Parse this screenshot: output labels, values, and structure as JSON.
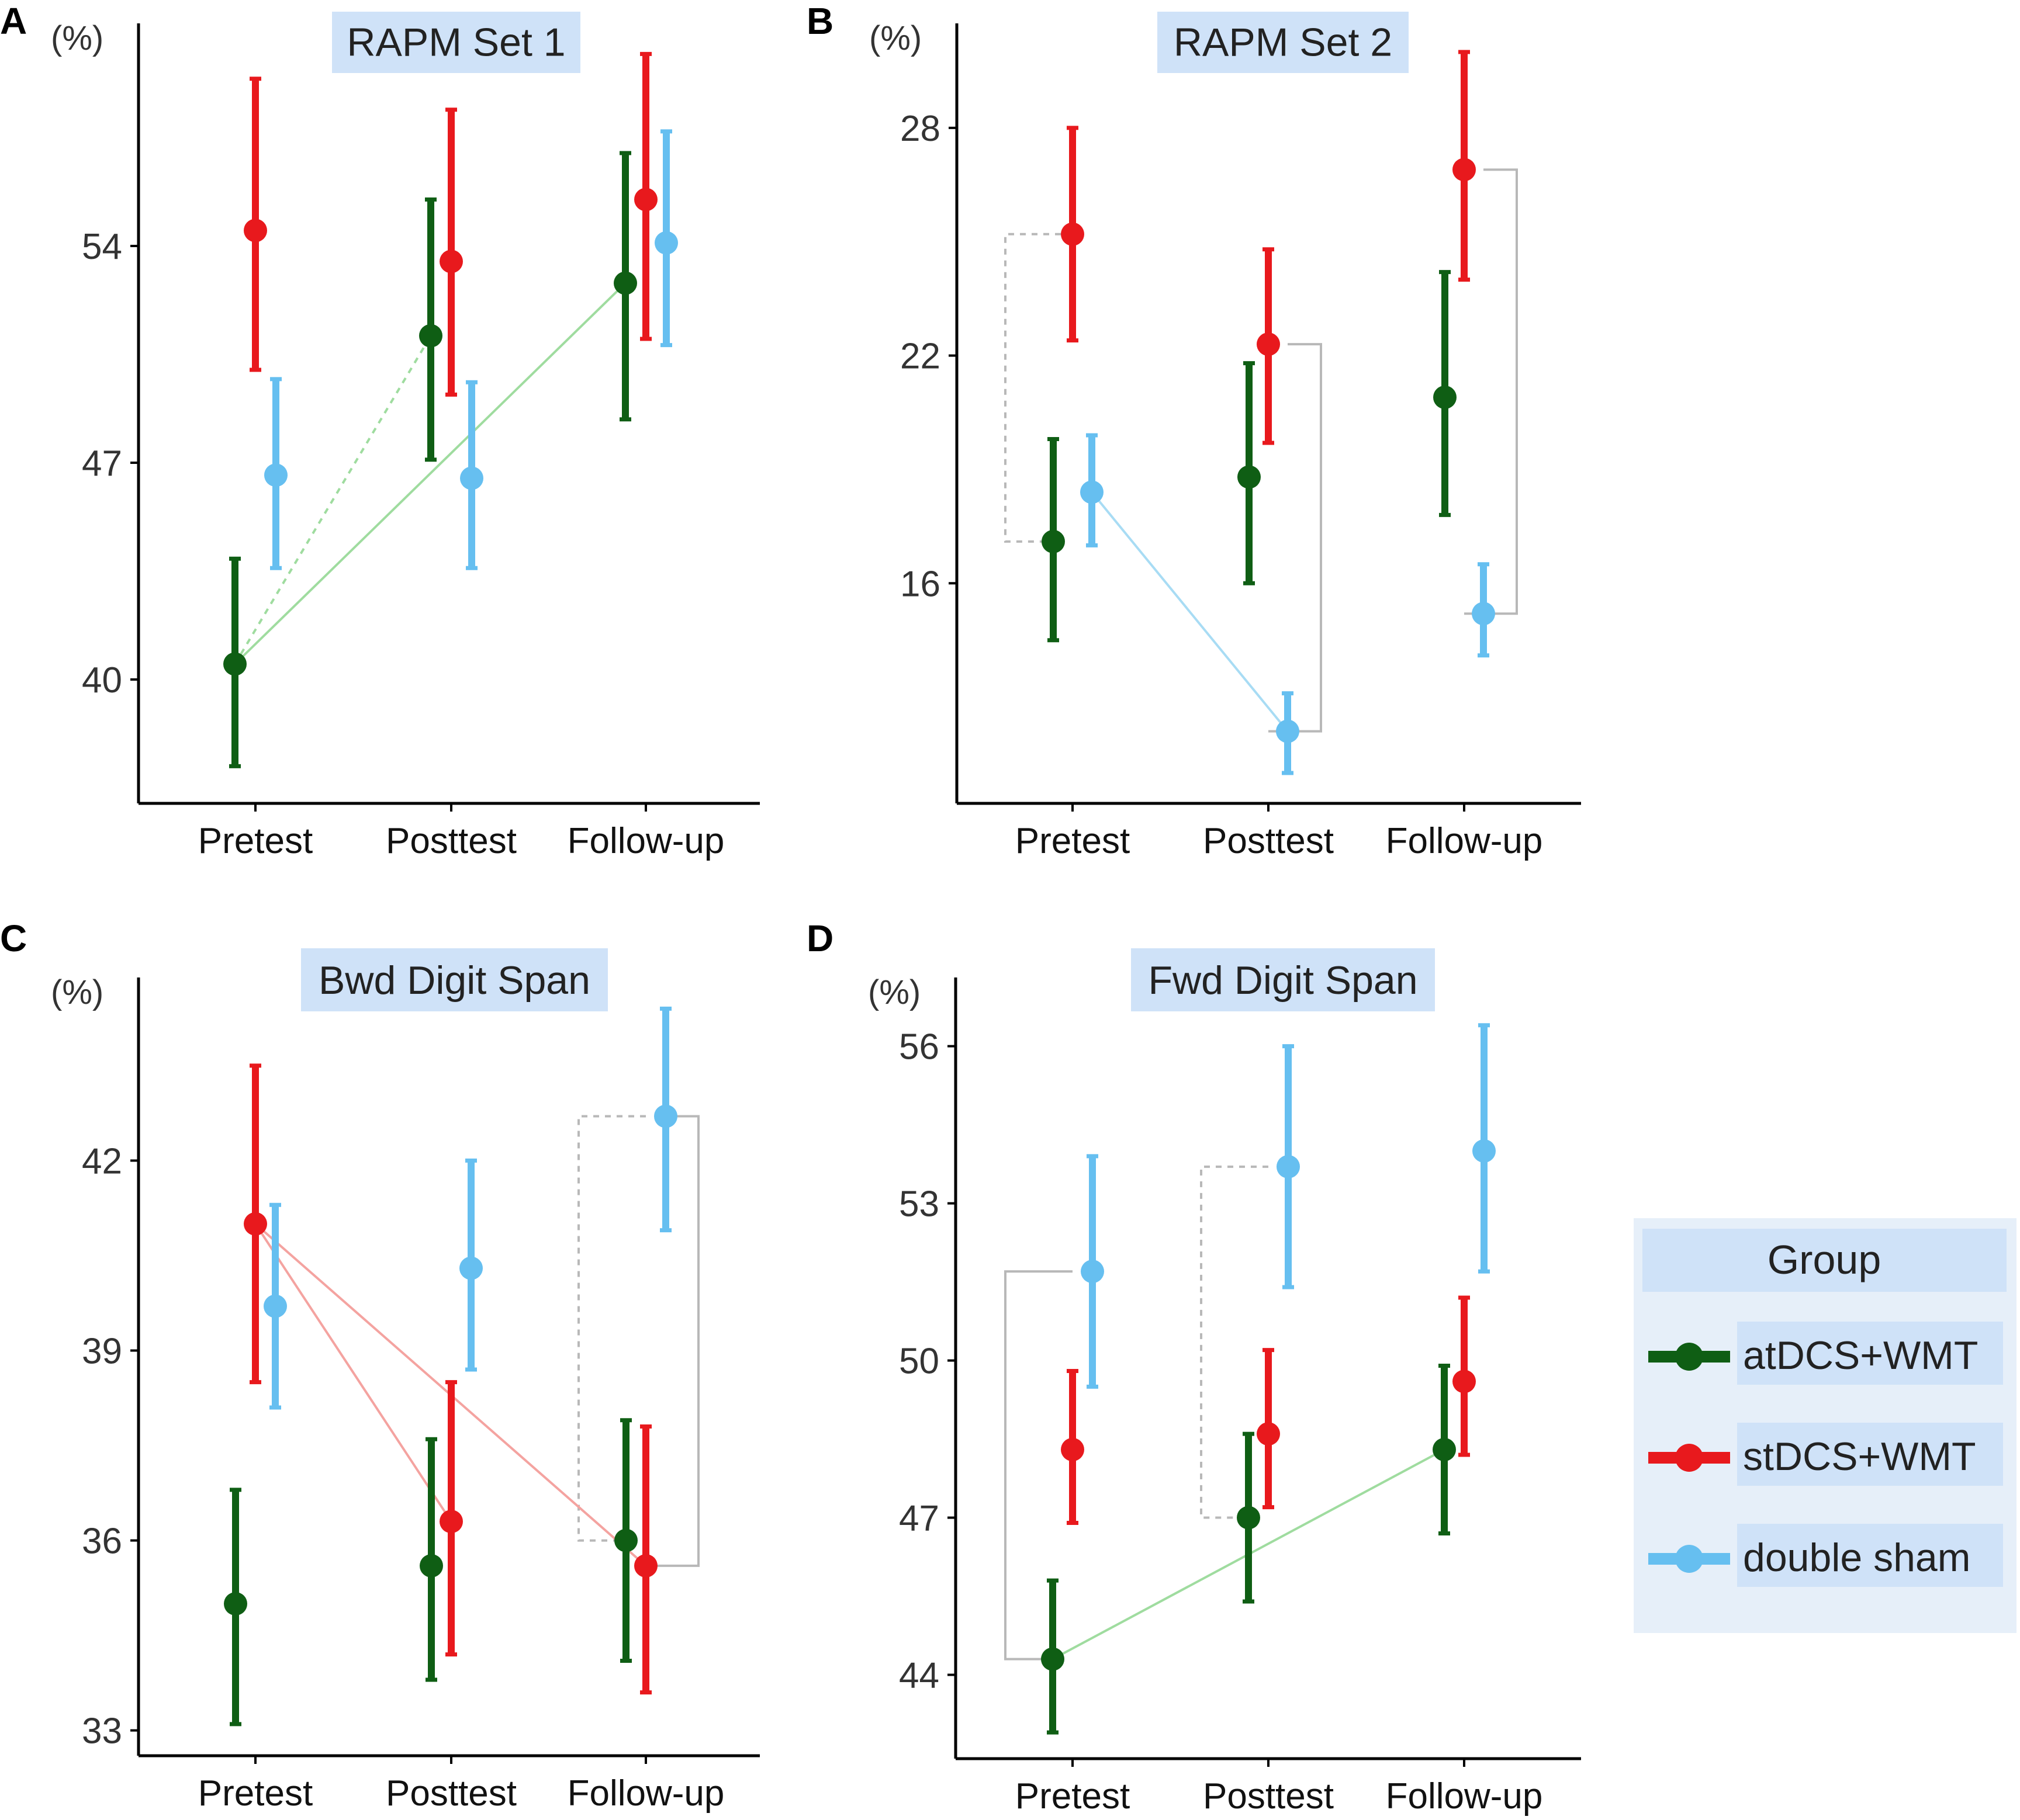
{
  "colors": {
    "atDCS": "#0f5e14",
    "stDCS": "#e8191d",
    "sham": "#66bff0",
    "title_bg": "#cfe2f8",
    "legend_bg": "#e6eff9",
    "bracket": "#b8b8b8"
  },
  "legend": {
    "title": "Group",
    "items": [
      {
        "label": "atDCS+WMT",
        "color": "#0f5e14"
      },
      {
        "label": "stDCS+WMT",
        "color": "#e8191d"
      },
      {
        "label": "double sham",
        "color": "#66bff0"
      }
    ]
  },
  "chart_data": [
    {
      "panel": "A",
      "type": "scatter",
      "title": "RAPM Set 1",
      "ylabel": "(%)",
      "categories": [
        "Pretest",
        "Posttest",
        "Follow-up"
      ],
      "ylim": [
        36,
        61
      ],
      "yticks": [
        40,
        47,
        54
      ],
      "series": [
        {
          "name": "atDCS+WMT",
          "values": [
            40.5,
            51.1,
            52.8
          ],
          "lower": [
            37.2,
            47.1,
            48.4
          ],
          "upper": [
            43.9,
            55.5,
            57.0
          ]
        },
        {
          "name": "stDCS+WMT",
          "values": [
            54.5,
            53.5,
            55.5
          ],
          "lower": [
            50.0,
            49.2,
            51.0
          ],
          "upper": [
            59.4,
            58.4,
            60.2
          ]
        },
        {
          "name": "double sham",
          "values": [
            46.6,
            46.5,
            54.1
          ],
          "lower": [
            43.6,
            43.6,
            50.8
          ],
          "upper": [
            49.7,
            49.6,
            57.7
          ]
        }
      ],
      "links": [
        {
          "from": [
            0,
            0
          ],
          "to": [
            1,
            0
          ],
          "style": "dashed",
          "color": "#9fdc9f"
        },
        {
          "from": [
            0,
            0
          ],
          "to": [
            2,
            0
          ],
          "style": "solid",
          "color": "#9fdc9f"
        }
      ],
      "brackets": []
    },
    {
      "panel": "B",
      "type": "scatter",
      "title": "RAPM Set 2",
      "ylabel": "(%)",
      "categories": [
        "Pretest",
        "Posttest",
        "Follow-up"
      ],
      "ylim": [
        10.2,
        30.6
      ],
      "yticks": [
        16,
        22,
        28
      ],
      "series": [
        {
          "name": "atDCS+WMT",
          "values": [
            17.1,
            18.8,
            20.9
          ],
          "lower": [
            14.5,
            16.0,
            17.8
          ],
          "upper": [
            19.8,
            21.8,
            24.2
          ]
        },
        {
          "name": "stDCS+WMT",
          "values": [
            25.2,
            22.3,
            26.9
          ],
          "lower": [
            22.4,
            19.7,
            24.0
          ],
          "upper": [
            28.0,
            24.8,
            30.0
          ]
        },
        {
          "name": "double sham",
          "values": [
            18.4,
            12.1,
            15.2
          ],
          "lower": [
            17.0,
            11.0,
            14.1
          ],
          "upper": [
            19.9,
            13.1,
            16.5
          ]
        }
      ],
      "links": [
        {
          "from": [
            0,
            2
          ],
          "to": [
            1,
            2
          ],
          "style": "solid",
          "color": "#a8dcf4"
        }
      ],
      "brackets": [
        {
          "x1": 0,
          "x2": 0,
          "y1": 25.2,
          "y2": 17.1,
          "side": "left",
          "style": "dashed"
        },
        {
          "x1": 1,
          "x2": 1,
          "y1": 22.3,
          "y2": 12.1,
          "side": "right",
          "style": "solid"
        },
        {
          "x1": 2,
          "x2": 2,
          "y1": 26.9,
          "y2": 15.2,
          "side": "right",
          "style": "solid"
        }
      ]
    },
    {
      "panel": "C",
      "type": "scatter",
      "title": "Bwd Digit Span",
      "ylabel": "(%)",
      "categories": [
        "Pretest",
        "Posttest",
        "Follow-up"
      ],
      "ylim": [
        32.6,
        44.8
      ],
      "yticks": [
        33,
        36,
        39,
        42
      ],
      "series": [
        {
          "name": "atDCS+WMT",
          "values": [
            35.0,
            35.6,
            36.0
          ],
          "lower": [
            33.1,
            33.8,
            34.1
          ],
          "upper": [
            36.8,
            37.6,
            37.9
          ]
        },
        {
          "name": "stDCS+WMT",
          "values": [
            41.0,
            36.3,
            35.6
          ],
          "lower": [
            38.5,
            34.2,
            33.6
          ],
          "upper": [
            43.5,
            38.5,
            37.8
          ]
        },
        {
          "name": "double sham",
          "values": [
            39.7,
            40.3,
            42.7
          ],
          "lower": [
            38.1,
            38.7,
            40.9
          ],
          "upper": [
            41.3,
            42.0,
            44.4
          ]
        }
      ],
      "links": [
        {
          "from": [
            0,
            1
          ],
          "to": [
            1,
            1
          ],
          "style": "solid",
          "color": "#f4a3a0"
        },
        {
          "from": [
            0,
            1
          ],
          "to": [
            2,
            1
          ],
          "style": "solid",
          "color": "#f4a3a0"
        }
      ],
      "brackets": [
        {
          "x1": 2,
          "x2": 2,
          "y1": 42.7,
          "y2": 36.0,
          "side": "left",
          "style": "dashed"
        },
        {
          "x1": 2,
          "x2": 2,
          "y1": 42.7,
          "y2": 35.6,
          "side": "right",
          "style": "solid"
        }
      ]
    },
    {
      "panel": "D",
      "type": "scatter",
      "title": "Fwd Digit Span",
      "ylabel": "(%)",
      "categories": [
        "Pretest",
        "Posttest",
        "Follow-up"
      ],
      "ylim": [
        42.4,
        57.2
      ],
      "yticks": [
        44,
        47,
        50,
        53,
        56
      ],
      "series": [
        {
          "name": "atDCS+WMT",
          "values": [
            44.3,
            47.0,
            48.3
          ],
          "lower": [
            42.9,
            45.4,
            46.7
          ],
          "upper": [
            45.8,
            48.6,
            49.9
          ]
        },
        {
          "name": "stDCS+WMT",
          "values": [
            48.3,
            48.6,
            49.6
          ],
          "lower": [
            46.9,
            47.2,
            48.2
          ],
          "upper": [
            49.8,
            50.2,
            51.2
          ]
        },
        {
          "name": "double sham",
          "values": [
            51.7,
            53.7,
            54.0
          ],
          "lower": [
            49.5,
            51.4,
            51.7
          ],
          "upper": [
            53.9,
            56.0,
            56.4
          ]
        }
      ],
      "links": [
        {
          "from": [
            0,
            0
          ],
          "to": [
            2,
            0
          ],
          "style": "solid",
          "color": "#9fdc9f"
        }
      ],
      "brackets": [
        {
          "x1": 0,
          "x2": 0,
          "y1": 51.7,
          "y2": 44.3,
          "side": "left",
          "style": "solid"
        },
        {
          "x1": 1,
          "x2": 1,
          "y1": 53.7,
          "y2": 47.0,
          "side": "left",
          "style": "dashed"
        }
      ]
    }
  ]
}
